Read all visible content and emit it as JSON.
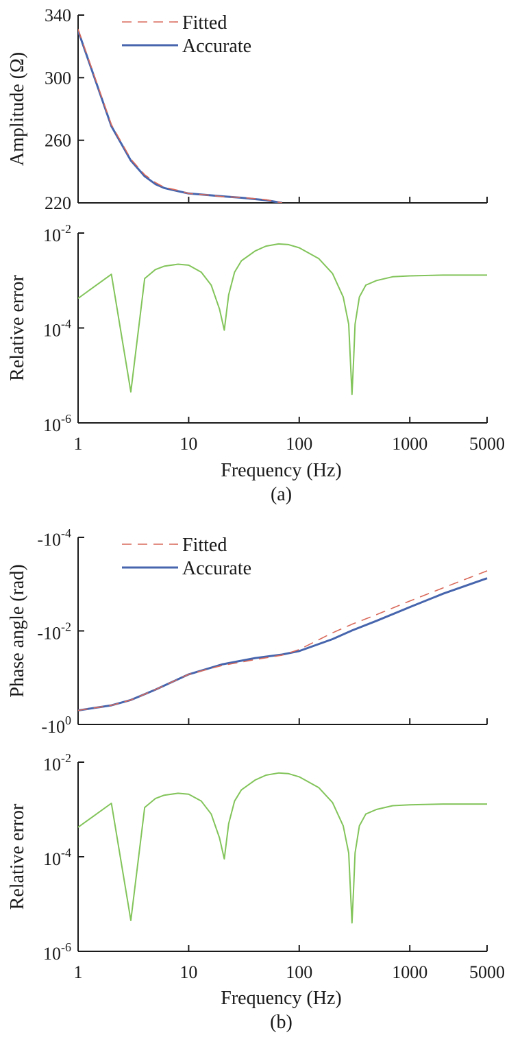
{
  "captions": [
    "(a)",
    "(b)"
  ],
  "x_label": "Frequency (Hz)",
  "x_ticks": [
    "1",
    "10",
    "100",
    "1000",
    "5000"
  ],
  "x_tick_values": [
    1,
    10,
    100,
    1000,
    5000
  ],
  "colors": {
    "fitted": "#d9695a",
    "accurate": "#4665ad",
    "error": "#82c45a",
    "axis": "#1a1a1a"
  },
  "chart_data": [
    {
      "type": "line",
      "panel": "a-top",
      "xscale": "log",
      "xlim": [
        1,
        5000
      ],
      "ylim": [
        220,
        340
      ],
      "ylabel": "Amplitude (Ω)",
      "yticks": [
        340,
        300,
        260,
        220
      ],
      "ytick_labels": [
        "340",
        "300",
        "260",
        "220"
      ],
      "legend": "top-left",
      "x": [
        1,
        2,
        3,
        4,
        5,
        6,
        8,
        10,
        15,
        20,
        30,
        50,
        70
      ],
      "series": [
        {
          "name": "Fitted",
          "style": "dashed",
          "values": [
            331,
            270,
            248,
            238,
            233,
            230,
            228,
            226,
            225,
            224,
            223.5,
            222,
            220
          ]
        },
        {
          "name": "Accurate",
          "style": "solid",
          "values": [
            330,
            269,
            247,
            237,
            232,
            229.5,
            227.5,
            226,
            225,
            224.2,
            223.3,
            221.7,
            220
          ]
        }
      ]
    },
    {
      "type": "line",
      "panel": "a-bottom",
      "xscale": "log",
      "yscale": "log",
      "xlim": [
        1,
        5000
      ],
      "ylim": [
        1e-06,
        0.01
      ],
      "ylabel": "Relative error",
      "ytick_labels": [
        {
          "base": "10",
          "exp": "-2"
        },
        {
          "base": "10",
          "exp": "-4"
        },
        {
          "base": "10",
          "exp": "-6"
        }
      ],
      "ytick_values": [
        0.01,
        0.0001,
        1e-06
      ],
      "x": [
        1,
        2,
        3,
        4,
        5,
        6,
        8,
        10,
        13,
        16,
        19,
        21,
        23,
        26,
        30,
        40,
        50,
        65,
        80,
        100,
        150,
        200,
        250,
        280,
        300,
        310,
        320,
        350,
        400,
        500,
        700,
        1000,
        2000,
        5000
      ],
      "series": [
        {
          "name": "",
          "values": [
            0.00042,
            0.00135,
            4.5e-06,
            0.0011,
            0.0017,
            0.002,
            0.0022,
            0.0021,
            0.0015,
            0.0008,
            0.00025,
            9e-05,
            0.0005,
            0.0015,
            0.0026,
            0.0042,
            0.0053,
            0.0059,
            0.0057,
            0.0049,
            0.0029,
            0.0014,
            0.00045,
            0.00012,
            4e-06,
            2e-05,
            0.00012,
            0.00045,
            0.0008,
            0.001,
            0.0012,
            0.00125,
            0.0013,
            0.0013
          ]
        }
      ]
    },
    {
      "type": "line",
      "panel": "b-top",
      "xscale": "log",
      "yscale": "log",
      "xlim": [
        1,
        5000
      ],
      "ylim": [
        -1,
        -0.0001
      ],
      "ylabel": "Phase angle (rad)",
      "ytick_labels": [
        {
          "base": "-10",
          "exp": "-4"
        },
        {
          "base": "-10",
          "exp": "-2"
        },
        {
          "base": "-10",
          "exp": "0"
        }
      ],
      "ytick_values": [
        -0.0001,
        -0.01,
        -1
      ],
      "legend": "top-left",
      "x": [
        1,
        2,
        3,
        5,
        10,
        20,
        40,
        70,
        100,
        200,
        300,
        500,
        1000,
        2000,
        5000
      ],
      "series": [
        {
          "name": "Fitted",
          "style": "dashed",
          "values": [
            -0.5,
            -0.39,
            -0.3,
            -0.18,
            -0.085,
            -0.055,
            -0.041,
            -0.033,
            -0.025,
            -0.011,
            -0.0072,
            -0.0045,
            -0.0023,
            -0.0012,
            -0.00052
          ]
        },
        {
          "name": "Accurate",
          "style": "solid",
          "values": [
            -0.5,
            -0.39,
            -0.3,
            -0.18,
            -0.085,
            -0.052,
            -0.038,
            -0.032,
            -0.027,
            -0.015,
            -0.0098,
            -0.0061,
            -0.0031,
            -0.0016,
            -0.00075
          ]
        }
      ]
    },
    {
      "type": "line",
      "panel": "b-bottom",
      "xscale": "log",
      "yscale": "log",
      "xlim": [
        1,
        5000
      ],
      "ylim": [
        1e-06,
        0.01
      ],
      "ylabel": "Relative error",
      "ytick_labels": [
        {
          "base": "10",
          "exp": "-2"
        },
        {
          "base": "10",
          "exp": "-4"
        },
        {
          "base": "10",
          "exp": "-6"
        }
      ],
      "ytick_values": [
        0.01,
        0.0001,
        1e-06
      ],
      "x": [
        1,
        2,
        3,
        4,
        5,
        6,
        8,
        10,
        13,
        16,
        19,
        21,
        23,
        26,
        30,
        40,
        50,
        65,
        80,
        100,
        150,
        200,
        250,
        280,
        300,
        310,
        320,
        350,
        400,
        500,
        700,
        1000,
        2000,
        5000
      ],
      "series": [
        {
          "name": "",
          "values": [
            0.00042,
            0.00135,
            4.5e-06,
            0.0011,
            0.0017,
            0.002,
            0.0022,
            0.0021,
            0.0015,
            0.0008,
            0.00025,
            9e-05,
            0.0005,
            0.0015,
            0.0026,
            0.0042,
            0.0053,
            0.0059,
            0.0057,
            0.0049,
            0.0029,
            0.0014,
            0.00045,
            0.00012,
            4e-06,
            2e-05,
            0.00012,
            0.00045,
            0.0008,
            0.001,
            0.0012,
            0.00125,
            0.0013,
            0.0013
          ]
        }
      ]
    }
  ]
}
